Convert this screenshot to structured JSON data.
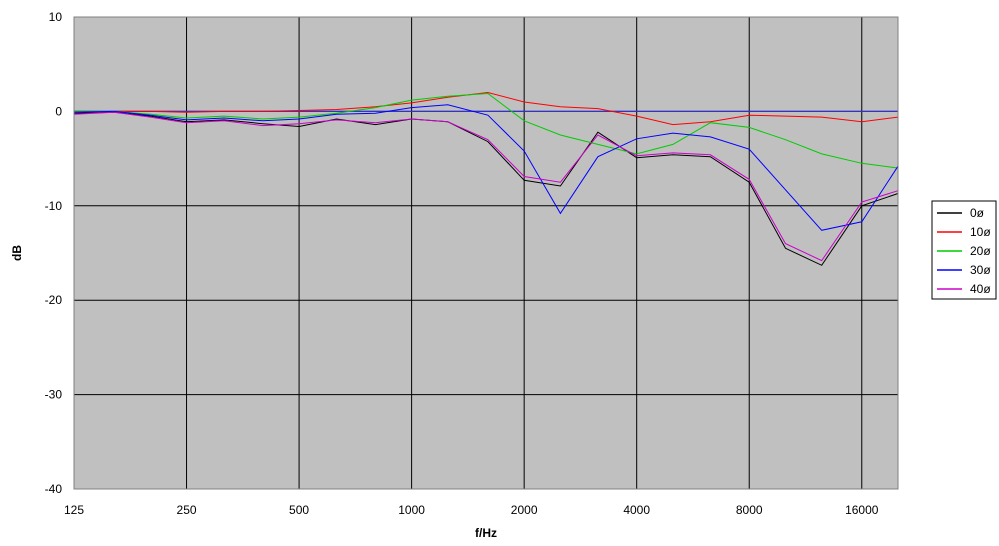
{
  "chart_data": {
    "type": "line",
    "xlabel": "f/Hz",
    "ylabel": "dB",
    "x_scale": "log2",
    "xlim": [
      125,
      20000
    ],
    "ylim": [
      -40,
      10
    ],
    "x_ticks": [
      125,
      250,
      500,
      1000,
      2000,
      4000,
      8000,
      16000
    ],
    "x_tick_labels": [
      "125",
      "250",
      "500",
      "1000",
      "2000",
      "4000",
      "8000",
      "16000"
    ],
    "y_ticks": [
      10,
      0,
      -10,
      -20,
      -30,
      -40
    ],
    "y_tick_labels": [
      "10",
      "0",
      "-10",
      "-20",
      "-30",
      "-40"
    ],
    "grid": true,
    "plot_background": "#c0c0c0",
    "gridline_color": "#000000",
    "reference_line": {
      "y": 0,
      "color": "#3333cc"
    },
    "legend_position": "right",
    "series": [
      {
        "name": "0ø",
        "color": "#000000",
        "points": [
          [
            125,
            -0.2
          ],
          [
            160,
            -0.1
          ],
          [
            200,
            -0.5
          ],
          [
            250,
            -1.1
          ],
          [
            315,
            -0.9
          ],
          [
            400,
            -1.3
          ],
          [
            500,
            -1.6
          ],
          [
            630,
            -0.8
          ],
          [
            800,
            -1.4
          ],
          [
            1000,
            -0.8
          ],
          [
            1250,
            -1.1
          ],
          [
            1600,
            -3.2
          ],
          [
            2000,
            -7.3
          ],
          [
            2500,
            -7.9
          ],
          [
            3150,
            -2.2
          ],
          [
            4000,
            -4.9
          ],
          [
            5000,
            -4.6
          ],
          [
            6300,
            -4.8
          ],
          [
            8000,
            -7.5
          ],
          [
            10000,
            -14.5
          ],
          [
            12500,
            -16.3
          ],
          [
            16000,
            -10.0
          ],
          [
            20000,
            -8.7
          ]
        ]
      },
      {
        "name": "10ø",
        "color": "#ff0000",
        "points": [
          [
            125,
            -0.1
          ],
          [
            160,
            0.0
          ],
          [
            200,
            0.0
          ],
          [
            250,
            -0.1
          ],
          [
            315,
            0.0
          ],
          [
            400,
            0.0
          ],
          [
            500,
            0.1
          ],
          [
            630,
            0.2
          ],
          [
            800,
            0.5
          ],
          [
            1000,
            0.9
          ],
          [
            1250,
            1.5
          ],
          [
            1600,
            2.0
          ],
          [
            2000,
            1.0
          ],
          [
            2500,
            0.5
          ],
          [
            3150,
            0.3
          ],
          [
            4000,
            -0.5
          ],
          [
            5000,
            -1.4
          ],
          [
            6300,
            -1.1
          ],
          [
            8000,
            -0.4
          ],
          [
            10000,
            -0.5
          ],
          [
            12500,
            -0.6
          ],
          [
            16000,
            -1.1
          ],
          [
            20000,
            -0.6
          ]
        ]
      },
      {
        "name": "20ø",
        "color": "#00cc00",
        "points": [
          [
            125,
            0.0
          ],
          [
            160,
            0.0
          ],
          [
            200,
            -0.3
          ],
          [
            250,
            -0.7
          ],
          [
            315,
            -0.5
          ],
          [
            400,
            -0.8
          ],
          [
            500,
            -0.6
          ],
          [
            630,
            -0.2
          ],
          [
            800,
            0.4
          ],
          [
            1000,
            1.2
          ],
          [
            1250,
            1.6
          ],
          [
            1600,
            1.9
          ],
          [
            2000,
            -1.0
          ],
          [
            2500,
            -2.5
          ],
          [
            3150,
            -3.5
          ],
          [
            4000,
            -4.5
          ],
          [
            5000,
            -3.5
          ],
          [
            6300,
            -1.2
          ],
          [
            8000,
            -1.7
          ],
          [
            10000,
            -3.0
          ],
          [
            12500,
            -4.5
          ],
          [
            16000,
            -5.5
          ],
          [
            20000,
            -6.0
          ]
        ]
      },
      {
        "name": "30ø",
        "color": "#0000ff",
        "points": [
          [
            125,
            -0.1
          ],
          [
            160,
            0.0
          ],
          [
            200,
            -0.4
          ],
          [
            250,
            -0.9
          ],
          [
            315,
            -0.7
          ],
          [
            400,
            -1.0
          ],
          [
            500,
            -0.8
          ],
          [
            630,
            -0.3
          ],
          [
            800,
            -0.2
          ],
          [
            1000,
            0.4
          ],
          [
            1250,
            0.7
          ],
          [
            1600,
            -0.4
          ],
          [
            2000,
            -4.2
          ],
          [
            2500,
            -10.8
          ],
          [
            3150,
            -4.8
          ],
          [
            4000,
            -2.9
          ],
          [
            5000,
            -2.3
          ],
          [
            6300,
            -2.7
          ],
          [
            8000,
            -4.0
          ],
          [
            10000,
            -8.3
          ],
          [
            12500,
            -12.6
          ],
          [
            16000,
            -11.7
          ],
          [
            20000,
            -5.8
          ]
        ]
      },
      {
        "name": "40ø",
        "color": "#cc00cc",
        "points": [
          [
            125,
            -0.3
          ],
          [
            160,
            -0.1
          ],
          [
            200,
            -0.6
          ],
          [
            250,
            -1.2
          ],
          [
            315,
            -1.0
          ],
          [
            400,
            -1.5
          ],
          [
            500,
            -1.3
          ],
          [
            630,
            -0.9
          ],
          [
            800,
            -1.2
          ],
          [
            1000,
            -0.8
          ],
          [
            1250,
            -1.1
          ],
          [
            1600,
            -3.0
          ],
          [
            2000,
            -6.9
          ],
          [
            2500,
            -7.5
          ],
          [
            3150,
            -2.5
          ],
          [
            4000,
            -4.7
          ],
          [
            5000,
            -4.4
          ],
          [
            6300,
            -4.6
          ],
          [
            8000,
            -7.2
          ],
          [
            10000,
            -14.0
          ],
          [
            12500,
            -15.8
          ],
          [
            16000,
            -9.6
          ],
          [
            20000,
            -8.4
          ]
        ]
      }
    ]
  }
}
